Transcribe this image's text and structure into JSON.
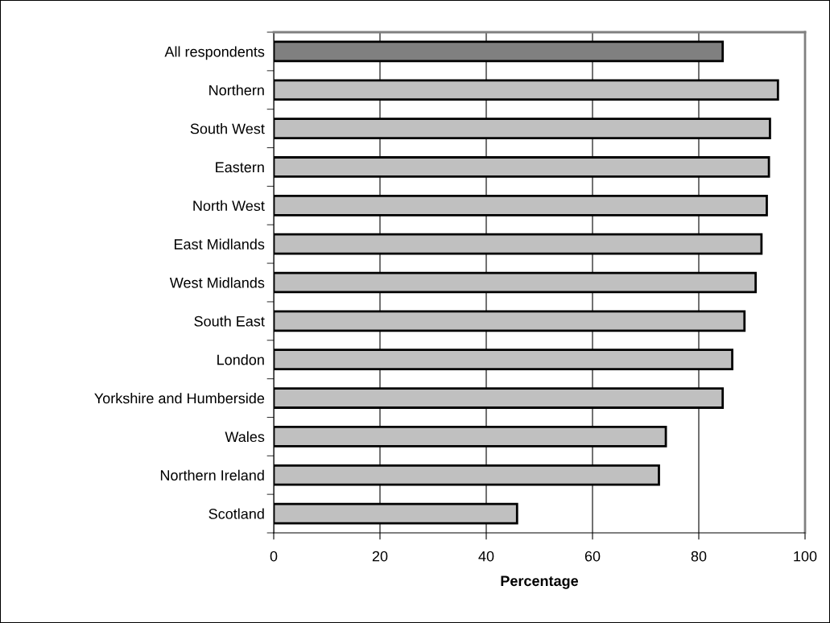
{
  "chart_data": {
    "type": "bar",
    "orientation": "horizontal",
    "xlabel": "Percentage",
    "categories": [
      "All respondents",
      "Northern",
      "South West",
      "Eastern",
      "North West",
      "East Midlands",
      "West Midlands",
      "South East",
      "London",
      "Yorkshire and Humberside",
      "Wales",
      "Northern Ireland",
      "Scotland"
    ],
    "values": [
      84.5,
      94.9,
      93.4,
      93.2,
      92.8,
      91.8,
      90.7,
      88.6,
      86.3,
      84.5,
      73.8,
      72.5,
      45.8
    ],
    "colors": [
      "#808080",
      "#c0c0c0",
      "#c0c0c0",
      "#c0c0c0",
      "#c0c0c0",
      "#c0c0c0",
      "#c0c0c0",
      "#c0c0c0",
      "#c0c0c0",
      "#c0c0c0",
      "#c0c0c0",
      "#c0c0c0",
      "#c0c0c0"
    ],
    "xlim": [
      0,
      100
    ],
    "xticks": [
      0,
      20,
      40,
      60,
      80,
      100
    ],
    "grid": "x"
  }
}
